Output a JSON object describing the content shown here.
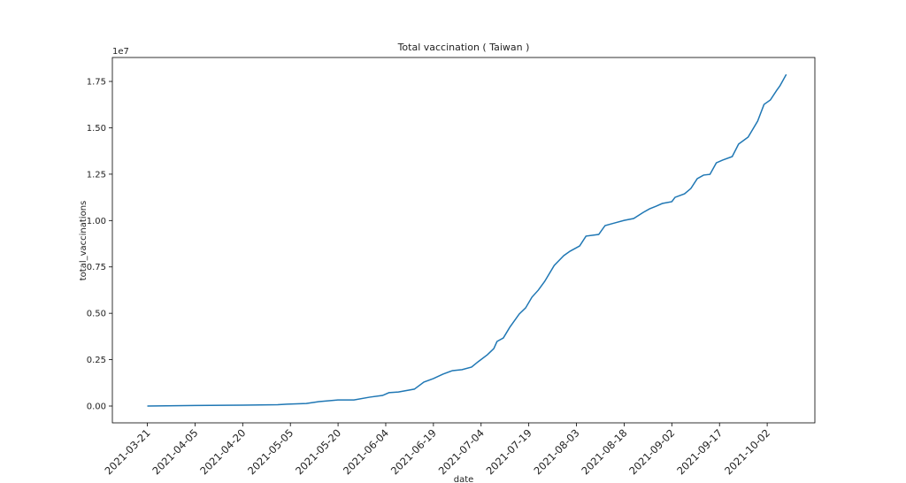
{
  "chart_data": {
    "type": "line",
    "title": "Total vaccination ( Taiwan )",
    "x_label": "date",
    "y_label": "total_vaccinations",
    "y_offset_label": "1e7",
    "x": [
      "2021-03-21",
      "2021-04-05",
      "2021-04-20",
      "2021-05-01",
      "2021-05-04",
      "2021-05-10",
      "2021-05-14",
      "2021-05-20",
      "2021-05-25",
      "2021-05-30",
      "2021-06-03",
      "2021-06-05",
      "2021-06-08",
      "2021-06-13",
      "2021-06-16",
      "2021-06-19",
      "2021-06-22",
      "2021-06-25",
      "2021-06-28",
      "2021-07-01",
      "2021-07-03",
      "2021-07-06",
      "2021-07-08",
      "2021-07-09",
      "2021-07-11",
      "2021-07-13",
      "2021-07-16",
      "2021-07-18",
      "2021-07-20",
      "2021-07-22",
      "2021-07-24",
      "2021-07-27",
      "2021-07-30",
      "2021-08-01",
      "2021-08-04",
      "2021-08-06",
      "2021-08-10",
      "2021-08-12",
      "2021-08-15",
      "2021-08-18",
      "2021-08-21",
      "2021-08-24",
      "2021-08-26",
      "2021-08-28",
      "2021-08-30",
      "2021-09-02",
      "2021-09-03",
      "2021-09-06",
      "2021-09-08",
      "2021-09-10",
      "2021-09-12",
      "2021-09-14",
      "2021-09-16",
      "2021-09-18",
      "2021-09-21",
      "2021-09-23",
      "2021-09-26",
      "2021-09-29",
      "2021-10-01",
      "2021-10-03",
      "2021-10-05",
      "2021-10-06",
      "2021-10-08"
    ],
    "series": [
      {
        "name": "total_vaccinations",
        "color": "#1f77b4",
        "values": [
          0,
          30000,
          50000,
          70000,
          100000,
          140000,
          240000,
          330000,
          330000,
          480000,
          570000,
          720000,
          760000,
          910000,
          1290000,
          1480000,
          1720000,
          1910000,
          1960000,
          2100000,
          2380000,
          2770000,
          3100000,
          3480000,
          3670000,
          4240000,
          4960000,
          5290000,
          5870000,
          6250000,
          6720000,
          7580000,
          8110000,
          8350000,
          8630000,
          9160000,
          9250000,
          9730000,
          9870000,
          10010000,
          10110000,
          10440000,
          10630000,
          10770000,
          10920000,
          11020000,
          11250000,
          11440000,
          11730000,
          12260000,
          12450000,
          12490000,
          13110000,
          13260000,
          13450000,
          14120000,
          14500000,
          15360000,
          16260000,
          16500000,
          17020000,
          17260000,
          17880000
        ]
      }
    ],
    "xlim": [
      "2021-03-10",
      "2021-10-17"
    ],
    "xticks": [
      "2021-03-21",
      "2021-04-05",
      "2021-04-20",
      "2021-05-05",
      "2021-05-20",
      "2021-06-04",
      "2021-06-19",
      "2021-07-04",
      "2021-07-19",
      "2021-08-03",
      "2021-08-18",
      "2021-09-02",
      "2021-09-17",
      "2021-10-02"
    ],
    "ylim": [
      -906000,
      18790000
    ],
    "yticks": [
      {
        "value": 0,
        "label": "0.00"
      },
      {
        "value": 2500000,
        "label": "0.25"
      },
      {
        "value": 5000000,
        "label": "0.50"
      },
      {
        "value": 7500000,
        "label": "0.75"
      },
      {
        "value": 10000000,
        "label": "1.00"
      },
      {
        "value": 12500000,
        "label": "1.25"
      },
      {
        "value": 15000000,
        "label": "1.50"
      },
      {
        "value": 17500000,
        "label": "1.75"
      }
    ],
    "grid": false
  }
}
